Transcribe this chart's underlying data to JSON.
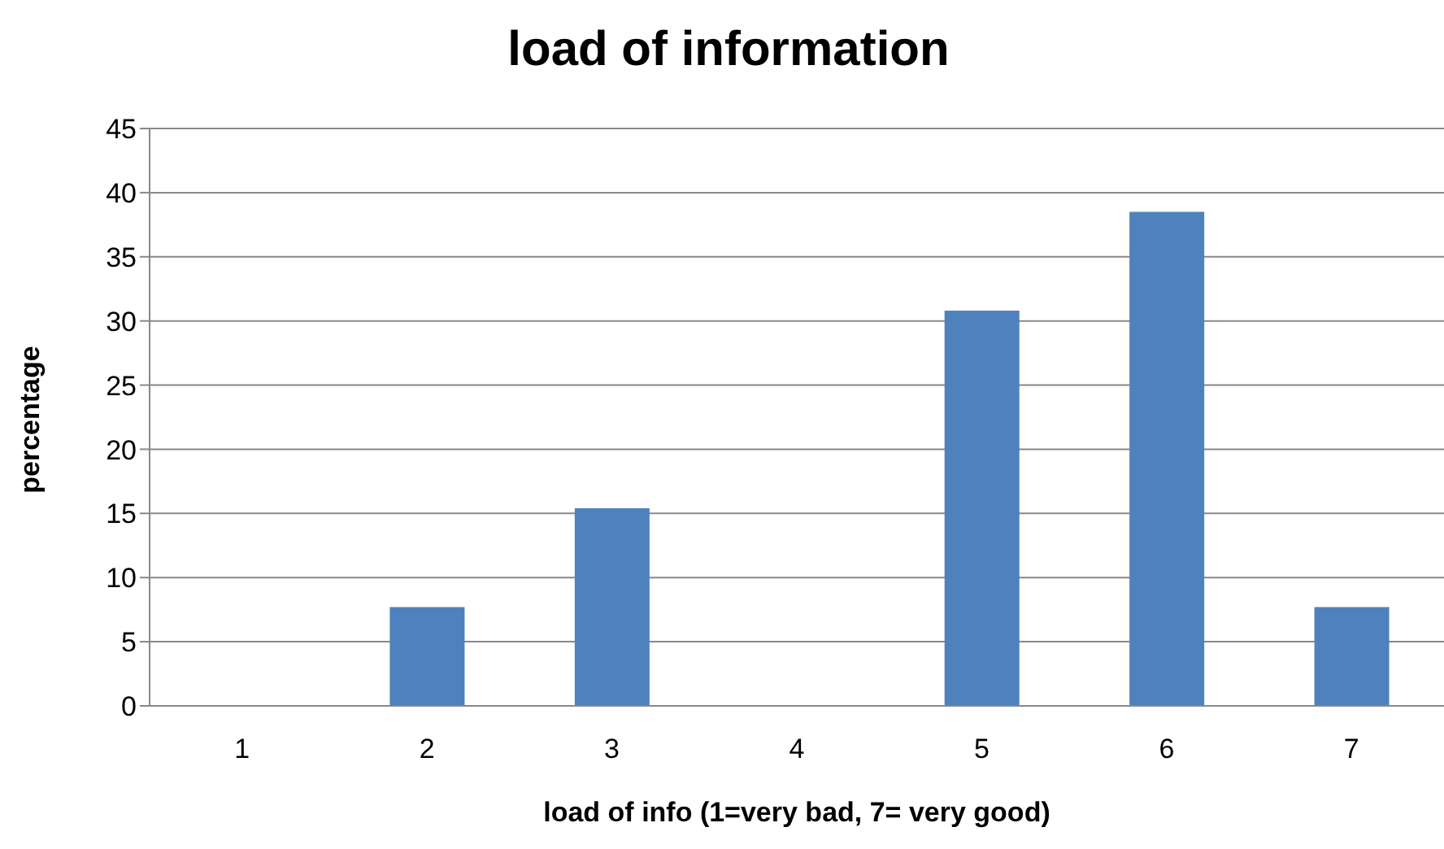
{
  "chart_data": {
    "type": "bar",
    "title": "load of information",
    "xlabel": "load of info (1=very bad, 7= very good)",
    "ylabel": "percentage",
    "categories": [
      "1",
      "2",
      "3",
      "4",
      "5",
      "6",
      "7"
    ],
    "values": [
      0,
      7.7,
      15.4,
      0,
      30.8,
      38.5,
      7.7
    ],
    "color": "#4f81bd",
    "ylim": [
      0,
      45
    ],
    "yticks": [
      0,
      5,
      10,
      15,
      20,
      25,
      30,
      35,
      40,
      45
    ],
    "grid": "y"
  }
}
